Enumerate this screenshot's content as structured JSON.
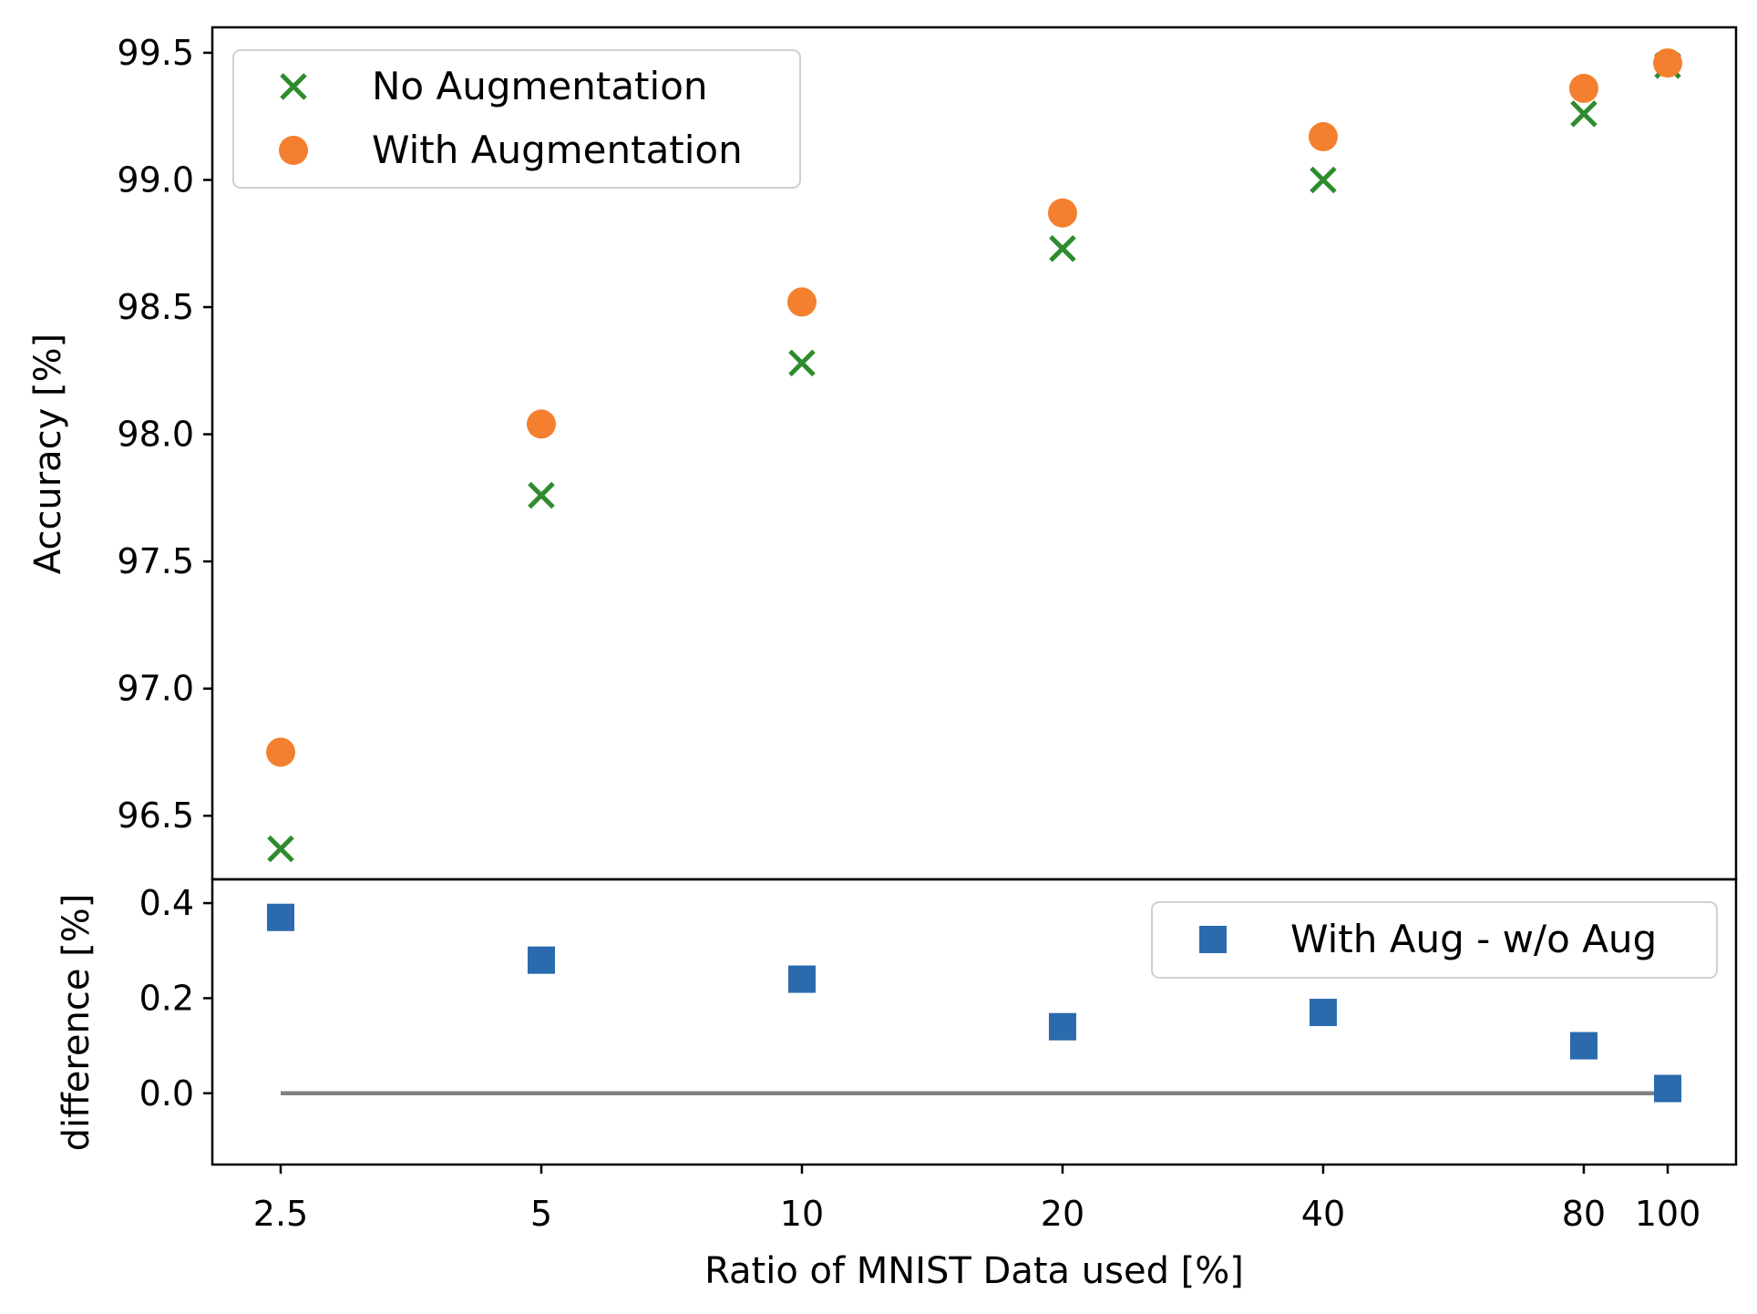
{
  "chart_data": [
    {
      "type": "scatter",
      "panel": "top",
      "xlabel": "",
      "ylabel": "Accuracy [%]",
      "x_scale": "log",
      "x": [
        2.5,
        5,
        10,
        20,
        40,
        80,
        100
      ],
      "ylim": [
        96.25,
        99.6
      ],
      "yticks": [
        96.5,
        97.0,
        97.5,
        98.0,
        98.5,
        99.0,
        99.5
      ],
      "ytick_labels": [
        "96.5",
        "97.0",
        "97.5",
        "98.0",
        "98.5",
        "99.0",
        "99.5"
      ],
      "series": [
        {
          "name": "No Augmentation",
          "marker": "x",
          "color": "#2e8b2e",
          "values": [
            96.37,
            97.76,
            98.28,
            98.73,
            99.0,
            99.26,
            99.45
          ]
        },
        {
          "name": "With Augmentation",
          "marker": "circle",
          "color": "#f47f2f",
          "values": [
            96.75,
            98.04,
            98.52,
            98.87,
            99.17,
            99.36,
            99.46
          ]
        }
      ],
      "legend": "top-left"
    },
    {
      "type": "scatter",
      "panel": "bottom",
      "xlabel": "Ratio of MNIST Data used [%]",
      "ylabel": "difference [%]",
      "x_scale": "log",
      "x": [
        2.5,
        5,
        10,
        20,
        40,
        80,
        100
      ],
      "xticks": [
        2.5,
        5,
        10,
        20,
        40,
        80,
        100
      ],
      "xtick_labels": [
        "2.5",
        "5",
        "10",
        "20",
        "40",
        "80",
        "100"
      ],
      "ylim": [
        -0.15,
        0.45
      ],
      "yticks": [
        0.0,
        0.2,
        0.4
      ],
      "ytick_labels": [
        "0.0",
        "0.2",
        "0.4"
      ],
      "series": [
        {
          "name": "With Aug - w/o Aug",
          "marker": "square",
          "color": "#2a6aad",
          "values": [
            0.37,
            0.28,
            0.24,
            0.14,
            0.17,
            0.1,
            0.01
          ]
        }
      ],
      "reference_line": {
        "y": 0,
        "x_from": 2.5,
        "x_to": 100,
        "color": "#808080"
      },
      "legend": "top-right"
    }
  ]
}
